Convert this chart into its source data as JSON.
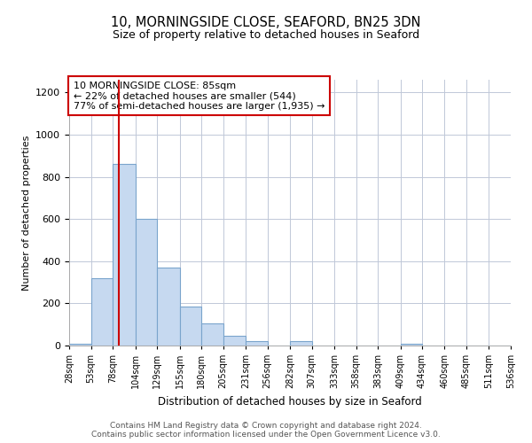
{
  "title_line1": "10, MORNINGSIDE CLOSE, SEAFORD, BN25 3DN",
  "title_line2": "Size of property relative to detached houses in Seaford",
  "xlabel": "Distribution of detached houses by size in Seaford",
  "ylabel": "Number of detached properties",
  "bar_edges": [
    28,
    53,
    78,
    104,
    129,
    155,
    180,
    205,
    231,
    256,
    282,
    307,
    333,
    358,
    383,
    409,
    434,
    460,
    485,
    511,
    536
  ],
  "bar_heights": [
    10,
    320,
    860,
    600,
    370,
    185,
    105,
    45,
    20,
    0,
    20,
    0,
    0,
    0,
    0,
    10,
    0,
    0,
    0,
    0
  ],
  "bar_color": "#c6d9f0",
  "bar_edgecolor": "#7aa4cc",
  "property_line_x": 85,
  "property_line_color": "#cc0000",
  "ylim": [
    0,
    1260
  ],
  "xlim": [
    28,
    536
  ],
  "annotation_text": "10 MORNINGSIDE CLOSE: 85sqm\n← 22% of detached houses are smaller (544)\n77% of semi-detached houses are larger (1,935) →",
  "annotation_box_color": "#ffffff",
  "annotation_box_edgecolor": "#cc0000",
  "footnote_line1": "Contains HM Land Registry data © Crown copyright and database right 2024.",
  "footnote_line2": "Contains public sector information licensed under the Open Government Licence v3.0.",
  "grid_color": "#c0c8d8",
  "background_color": "#ffffff",
  "tick_labels": [
    "28sqm",
    "53sqm",
    "78sqm",
    "104sqm",
    "129sqm",
    "155sqm",
    "180sqm",
    "205sqm",
    "231sqm",
    "256sqm",
    "282sqm",
    "307sqm",
    "333sqm",
    "358sqm",
    "383sqm",
    "409sqm",
    "434sqm",
    "460sqm",
    "485sqm",
    "511sqm",
    "536sqm"
  ],
  "yticks": [
    0,
    200,
    400,
    600,
    800,
    1000,
    1200
  ]
}
